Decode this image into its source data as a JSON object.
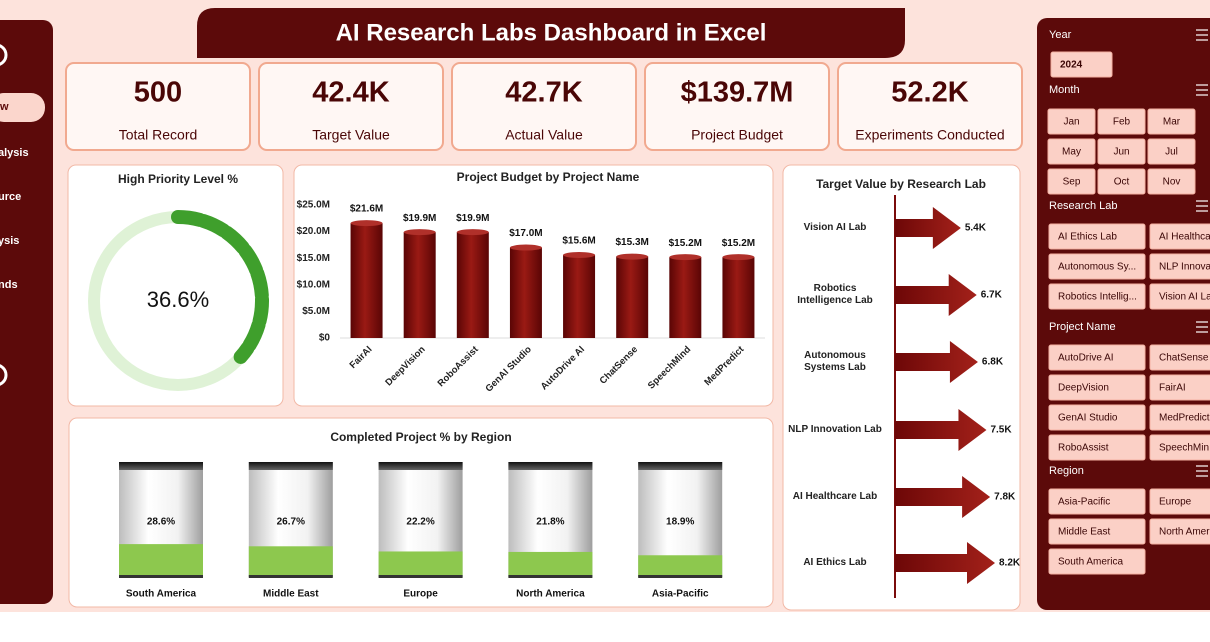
{
  "header": {
    "title": "AI Research Labs Dashboard in Excel"
  },
  "nav": [
    "w",
    "alysis",
    "urce",
    "ysis",
    "nds"
  ],
  "kpis": [
    {
      "value": "500",
      "label": "Total Record"
    },
    {
      "value": "42.4K",
      "label": "Target Value"
    },
    {
      "value": "42.7K",
      "label": "Actual Value"
    },
    {
      "value": "$139.7M",
      "label": "Project Budget"
    },
    {
      "value": "52.2K",
      "label": "Experiments Conducted"
    }
  ],
  "chart_data": [
    {
      "type": "doughnut",
      "title": "High Priority Level %",
      "values": [
        36.6
      ],
      "value_labels": [
        "36.6%"
      ],
      "color": "#3f9f2c"
    },
    {
      "type": "bar",
      "title": "Project Budget by Project Name",
      "categories": [
        "FairAI",
        "DeepVision",
        "RoboAssist",
        "GenAI Studio",
        "AutoDrive AI",
        "ChatSense",
        "SpeechMind",
        "MedPredict"
      ],
      "values": [
        21600000,
        19900000,
        19900000,
        17000000,
        15600000,
        15300000,
        15200000,
        15200000
      ],
      "value_labels": [
        "$21.6M",
        "$19.9M",
        "$19.9M",
        "$17.0M",
        "$15.6M",
        "$15.3M",
        "$15.2M",
        "$15.2M"
      ],
      "color": "#7a0b0b",
      "ylim": [
        0,
        25000000
      ],
      "yticks": [
        {
          "value": 0,
          "label": "$0"
        },
        {
          "value": 5000000,
          "label": "$5.0M"
        },
        {
          "value": 10000000,
          "label": "$10.0M"
        },
        {
          "value": 15000000,
          "label": "$15.0M"
        },
        {
          "value": 20000000,
          "label": "$20.0M"
        },
        {
          "value": 25000000,
          "label": "$25.0M"
        }
      ]
    },
    {
      "type": "arrow-bar",
      "title": "Target Value by Research Lab",
      "categories": [
        "Vision AI Lab",
        "Robotics Intelligence Lab",
        "Autonomous Systems Lab",
        "NLP Innovation Lab",
        "AI Healthcare Lab",
        "AI Ethics Lab"
      ],
      "values": [
        5400,
        6700,
        6800,
        7500,
        7800,
        8200
      ],
      "value_labels": [
        "5.4K",
        "6.7K",
        "6.8K",
        "7.5K",
        "7.8K",
        "8.2K"
      ],
      "color": "#8a0f0f"
    },
    {
      "type": "battery",
      "title": "Completed Project % by Region",
      "categories": [
        "South America",
        "Middle East",
        "Europe",
        "North America",
        "Asia-Pacific"
      ],
      "values": [
        28.6,
        26.7,
        22.2,
        21.8,
        18.9
      ],
      "value_labels": [
        "28.6%",
        "26.7%",
        "22.2%",
        "21.8%",
        "18.9%"
      ],
      "ylim": [
        0,
        100
      ],
      "color": "#8dc84e"
    }
  ],
  "slicers": [
    {
      "title": "Year",
      "items": [
        "2024"
      ]
    },
    {
      "title": "Month",
      "items": [
        "Jan",
        "Feb",
        "Mar",
        "May",
        "Jun",
        "Jul",
        "Sep",
        "Oct",
        "Nov"
      ]
    },
    {
      "title": "Research Lab",
      "items": [
        "AI Ethics Lab",
        "AI Healthcare",
        "Autonomous Sy...",
        "NLP Innovat",
        "Robotics Intellig...",
        "Vision AI Lab"
      ]
    },
    {
      "title": "Project Name",
      "items": [
        "AutoDrive AI",
        "ChatSense",
        "DeepVision",
        "FairAI",
        "GenAI Studio",
        "MedPredict",
        "RoboAssist",
        "SpeechMin"
      ]
    },
    {
      "title": "Region",
      "items": [
        "Asia-Pacific",
        "Europe",
        "Middle East",
        "North Ameri",
        "South America"
      ]
    }
  ]
}
